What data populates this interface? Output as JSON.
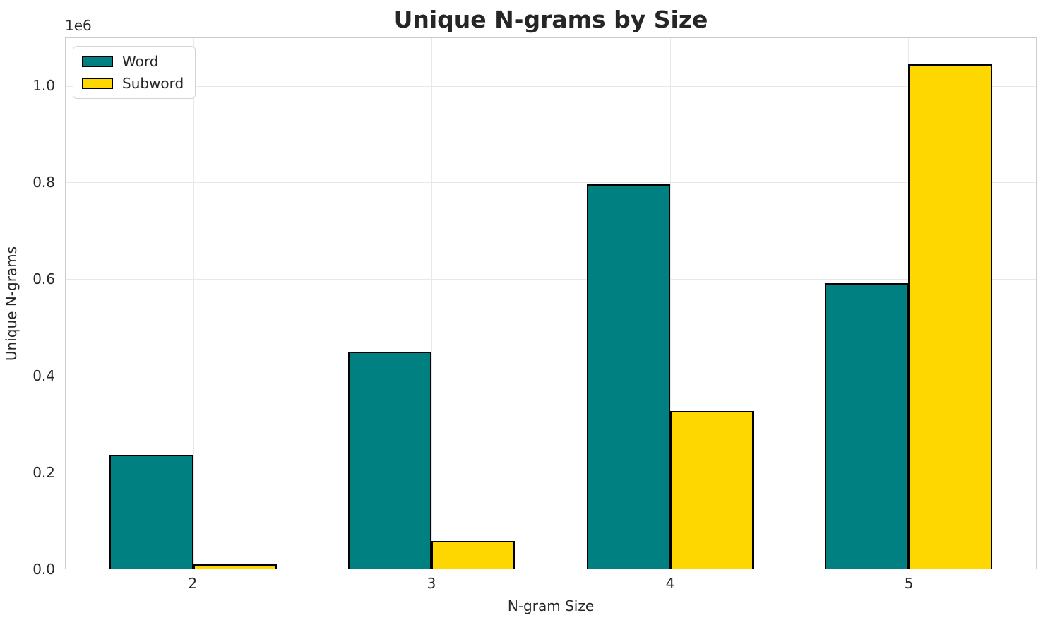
{
  "chart_data": {
    "type": "bar",
    "title": "Unique N-grams by Size",
    "xlabel": "N-gram Size",
    "ylabel": "Unique N-grams",
    "y_offset_label": "1e6",
    "categories": [
      "2",
      "3",
      "4",
      "5"
    ],
    "series": [
      {
        "name": "Word",
        "color": "#008080",
        "edge_color": "#000000",
        "values": [
          236000,
          450000,
          796000,
          591000
        ]
      },
      {
        "name": "Subword",
        "color": "#FFD700",
        "edge_color": "#000000",
        "values": [
          9000,
          57000,
          327000,
          1045000
        ]
      }
    ],
    "ylim": [
      0,
      1099000
    ],
    "xlim": [
      -0.535,
      3.535
    ],
    "bar_width": 0.35,
    "yticks": [
      0,
      200000,
      400000,
      600000,
      800000,
      1000000
    ],
    "ytick_labels": [
      "0.0",
      "0.2",
      "0.4",
      "0.6",
      "0.8",
      "1.0"
    ],
    "grid": true,
    "legend": {
      "position": "upper left",
      "entries": [
        "Word",
        "Subword"
      ]
    },
    "colors": {
      "text": "#262626",
      "grid": "#e8e8e8",
      "spine": "#cccccc",
      "background": "#ffffff"
    }
  }
}
